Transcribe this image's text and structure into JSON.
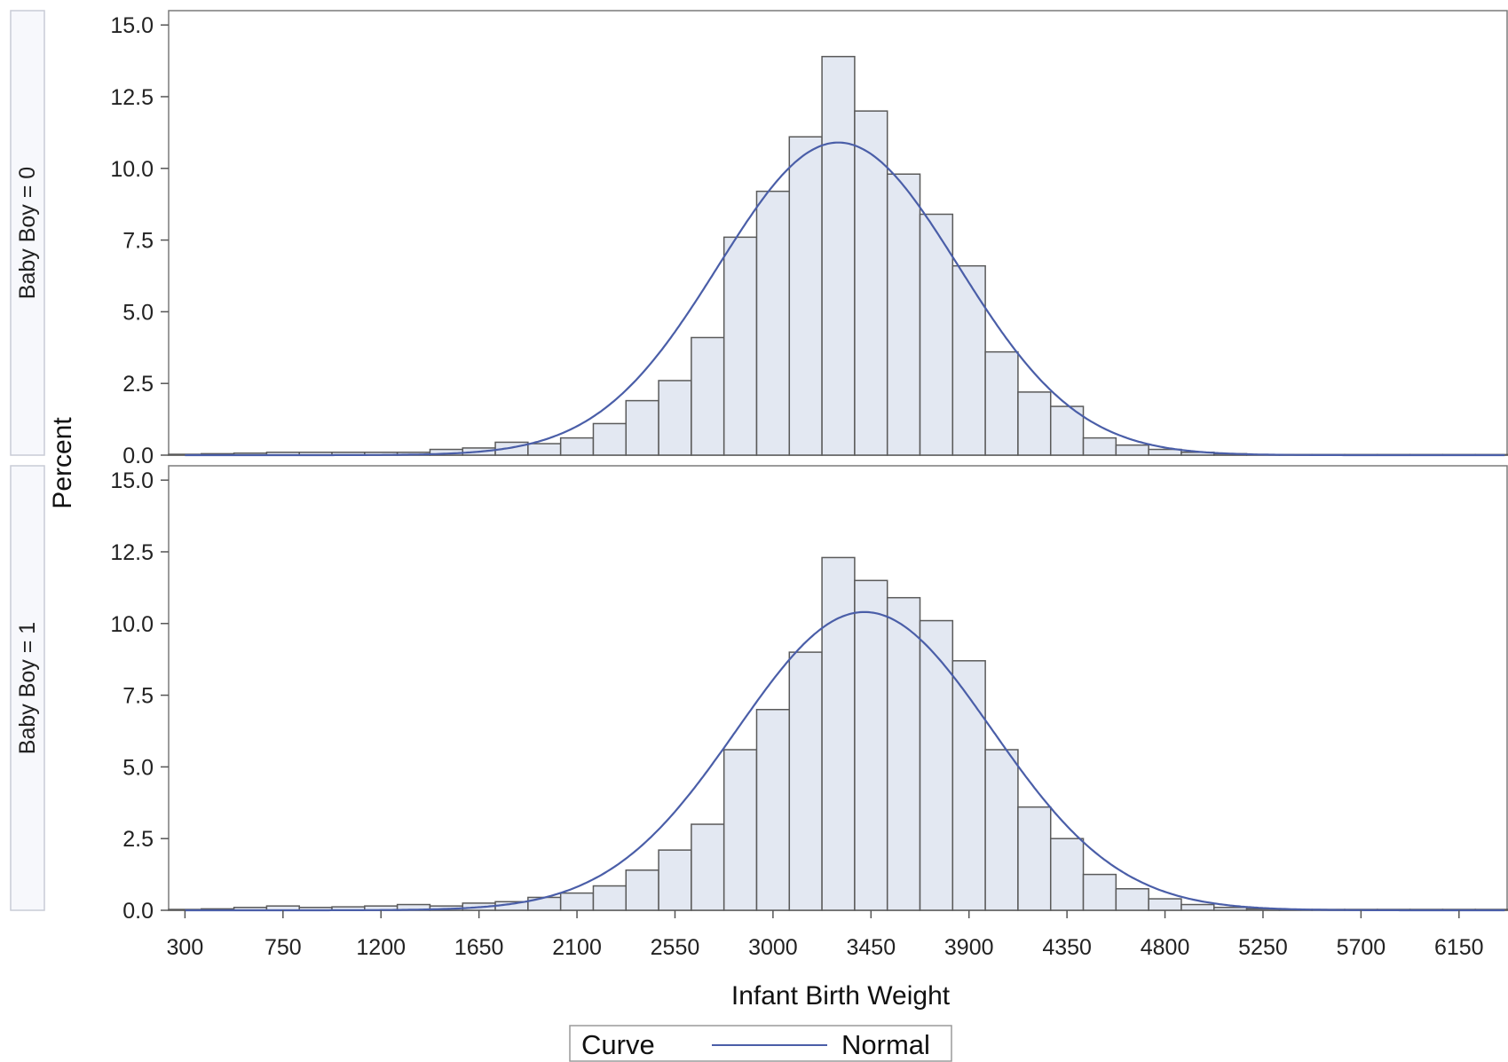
{
  "chart_data": {
    "type": "bar",
    "subtype": "paneled-histogram-with-normal-curve",
    "xlabel": "Infant Birth Weight",
    "ylabel": "Percent",
    "x_ticks": [
      300,
      750,
      1200,
      1650,
      2100,
      2550,
      3000,
      3450,
      3900,
      4350,
      4800,
      5250,
      5700,
      6150
    ],
    "xlim": [
      225,
      6375
    ],
    "y_ticks": [
      "0.0",
      "2.5",
      "5.0",
      "7.5",
      "10.0",
      "12.5",
      "15.0"
    ],
    "ylim": [
      0,
      15.5
    ],
    "bin_width": 150,
    "first_bin_center": 300,
    "grid": false,
    "legend": {
      "title": "Curve",
      "entries": [
        "Normal"
      ],
      "placement": "bottom-center"
    },
    "colors": {
      "bar_fill": "#e3e8f2",
      "bar_stroke": "#5a5a5a",
      "curve": "#4a5ea8",
      "frame": "#7a7a7a",
      "strip_fill": "#f7f8fc"
    },
    "panels": [
      {
        "label": "Baby Boy = 0",
        "bin_centers": [
          300,
          450,
          600,
          750,
          900,
          1050,
          1200,
          1350,
          1500,
          1650,
          1800,
          1950,
          2100,
          2250,
          2400,
          2550,
          2700,
          2850,
          3000,
          3150,
          3300,
          3450,
          3600,
          3750,
          3900,
          4050,
          4200,
          4350,
          4500,
          4650,
          4800,
          4950,
          5100,
          5250,
          5400,
          5550,
          5700,
          5850,
          6000,
          6150,
          6300
        ],
        "values": [
          0.03,
          0.05,
          0.07,
          0.1,
          0.1,
          0.1,
          0.1,
          0.1,
          0.2,
          0.25,
          0.45,
          0.4,
          0.6,
          1.1,
          1.9,
          2.6,
          4.1,
          7.6,
          9.2,
          11.1,
          13.9,
          12.0,
          9.8,
          8.4,
          6.6,
          3.6,
          2.2,
          1.7,
          0.6,
          0.35,
          0.2,
          0.1,
          0.05,
          0.02,
          0.02,
          0.02,
          0.02,
          0.02,
          0.02,
          0.02,
          0.02
        ],
        "normal_curve": {
          "mean": 3300,
          "sd": 550,
          "peak": 10.9
        }
      },
      {
        "label": "Baby Boy = 1",
        "bin_centers": [
          300,
          450,
          600,
          750,
          900,
          1050,
          1200,
          1350,
          1500,
          1650,
          1800,
          1950,
          2100,
          2250,
          2400,
          2550,
          2700,
          2850,
          3000,
          3150,
          3300,
          3450,
          3600,
          3750,
          3900,
          4050,
          4200,
          4350,
          4500,
          4650,
          4800,
          4950,
          5100,
          5250,
          5400,
          5550,
          5700,
          5850,
          6000,
          6150,
          6300
        ],
        "values": [
          0.03,
          0.05,
          0.1,
          0.15,
          0.1,
          0.12,
          0.15,
          0.2,
          0.15,
          0.25,
          0.3,
          0.45,
          0.6,
          0.85,
          1.4,
          2.1,
          3.0,
          5.6,
          7.0,
          9.0,
          12.3,
          11.5,
          10.9,
          10.1,
          8.7,
          5.6,
          3.6,
          2.5,
          1.25,
          0.75,
          0.4,
          0.2,
          0.1,
          0.05,
          0.03,
          0.03,
          0.03,
          0.03,
          0.03,
          0.03,
          0.03
        ],
        "normal_curve": {
          "mean": 3420,
          "sd": 585,
          "peak": 10.4
        }
      }
    ]
  }
}
